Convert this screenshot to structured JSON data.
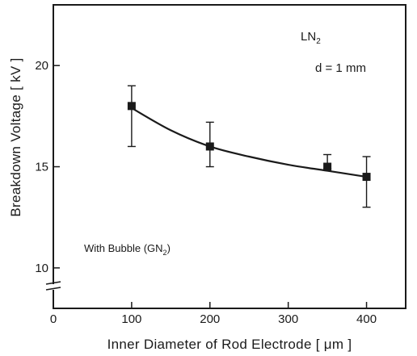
{
  "chart_data": {
    "type": "scatter",
    "title": "",
    "xlabel": "Inner Diameter of Rod Electrode [ μm ]",
    "ylabel": "Breakdown Voltage [ kV ]",
    "xlim": [
      0,
      450
    ],
    "ylim": [
      8,
      23
    ],
    "x_axis_break_shown": true,
    "xticks": [
      0,
      100,
      200,
      300,
      400
    ],
    "xtick_labels": [
      "0",
      "100",
      "200",
      "300",
      "400"
    ],
    "yticks": [
      10,
      15,
      20
    ],
    "ytick_labels": [
      "10",
      "15",
      "20"
    ],
    "grid": false,
    "marker": "filled-square",
    "color": "#1a1a1a",
    "series": [
      {
        "x": [
          100,
          200,
          350,
          400
        ],
        "y": [
          18.0,
          16.0,
          15.0,
          14.5
        ],
        "yerr_low": [
          16.0,
          15.0,
          14.9,
          13.0
        ],
        "yerr_high": [
          19.0,
          17.2,
          15.6,
          15.5
        ]
      }
    ],
    "fit_curve": {
      "x": [
        100,
        150,
        200,
        250,
        300,
        350,
        400
      ],
      "y": [
        17.9,
        16.8,
        16.0,
        15.5,
        15.1,
        14.8,
        14.5
      ]
    },
    "annotations": {
      "medium": "LN",
      "medium_sub": "2",
      "gap": "d = 1 mm",
      "condition_prefix": "With Bubble (GN",
      "condition_sub": "2",
      "condition_suffix": ")"
    }
  }
}
